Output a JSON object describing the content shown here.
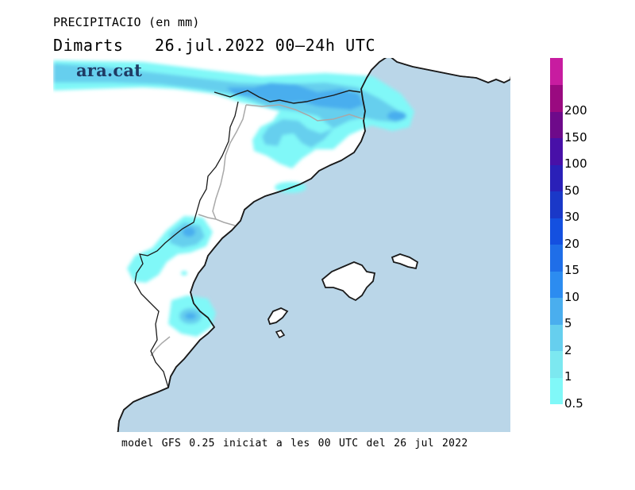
{
  "title": {
    "line1": "PRECIPITACIO (en mm)",
    "day": "Dimarts",
    "period": "26.jul.2022 00–24h UTC"
  },
  "brand": "ara.cat",
  "footer": "model GFS 0.25 iniciat a les 00 UTC del 26 jul 2022",
  "colors": {
    "sea": "#bad6e8",
    "land": "#ffffff",
    "coast": "#1a1a1a",
    "border": "#a8a8a8"
  },
  "legend": {
    "levels": [
      {
        "label": "0.5",
        "color": "#80f8f8"
      },
      {
        "label": "1",
        "color": "#7ce8f0"
      },
      {
        "label": "2",
        "color": "#66cfee"
      },
      {
        "label": "5",
        "color": "#4aaeee"
      },
      {
        "label": "10",
        "color": "#2c8cf0"
      },
      {
        "label": "15",
        "color": "#1f6ee8"
      },
      {
        "label": "20",
        "color": "#1450e0"
      },
      {
        "label": "30",
        "color": "#1a38c8"
      },
      {
        "label": "50",
        "color": "#2a20b8"
      },
      {
        "label": "100",
        "color": "#4810a8"
      },
      {
        "label": "150",
        "color": "#6e0a8a"
      },
      {
        "label": "200",
        "color": "#9a0a80"
      },
      {
        "label": "",
        "color": "#c81ca0"
      }
    ]
  }
}
